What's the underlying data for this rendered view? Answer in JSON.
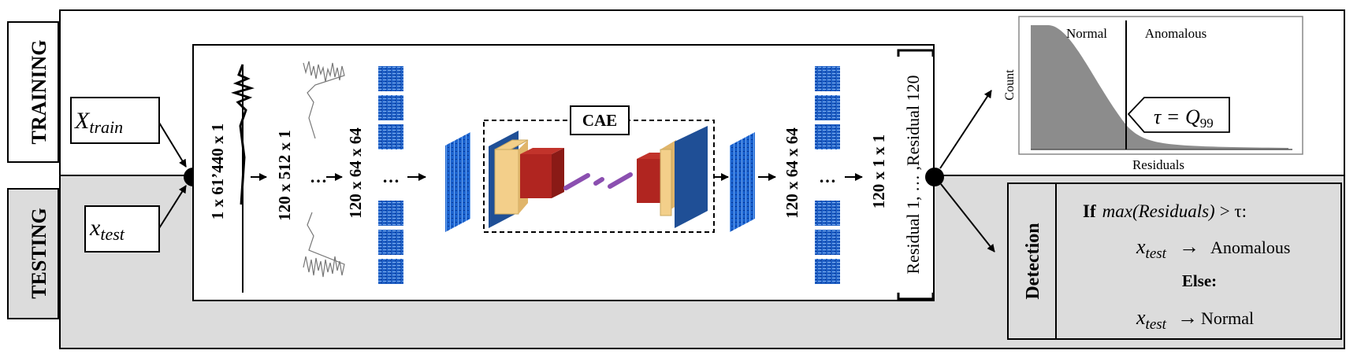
{
  "phases": {
    "training": "TRAINING",
    "testing": "TESTING"
  },
  "inputs": {
    "train": {
      "symbol": "X",
      "subscript": "train"
    },
    "test": {
      "symbol": "x",
      "subscript": "test"
    }
  },
  "dimensions": {
    "raw": "1 x 61’440 x 1",
    "segments": "120 x 512 x 1",
    "spectrograms": "120 x 64 x 64",
    "reconstructed": "120 x 64 x 64",
    "residuals": "120 x 1 x 1"
  },
  "ellipsis": "…",
  "cae_label": "CAE",
  "residuals_set": {
    "first": "Residual 1",
    "middle": ", … ,",
    "last": "Residual 120"
  },
  "histogram": {
    "normal": "Normal",
    "anomalous": "Anomalous",
    "ylabel": "Count",
    "xlabel": "Residuals",
    "threshold": {
      "tau": "τ",
      "equals": "=",
      "Q": "Q",
      "sub": "99"
    }
  },
  "detection": {
    "title": "Detection",
    "if_word": "If",
    "condition": "max(Residuals)",
    "compare": "> τ:",
    "x": "x",
    "x_sub": "test",
    "arrow": "→",
    "anomalous": "Anomalous",
    "else_word": "Else:",
    "normal": "Normal"
  },
  "colors": {
    "testing_bg": "#dcdcdc",
    "spectrogram": "#1f5fc4",
    "encoder_blue": "#1f4f96",
    "bottleneck_red": "#b02520",
    "encoder_tan": "#f3cf8a",
    "latent_purple": "#8b4fb0",
    "hist_fill": "#8c8c8c"
  }
}
